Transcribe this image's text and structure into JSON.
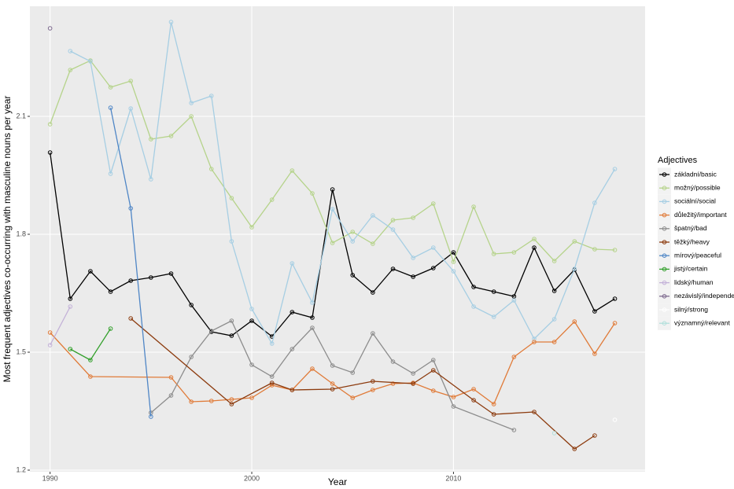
{
  "chart_data": {
    "type": "line",
    "xlabel": "Year",
    "ylabel": "Most frequent adjectives co-occurring with masculine nouns per year",
    "legend_title": "Adjectives",
    "legend": "right",
    "grid": true,
    "xlim": [
      1989,
      2019.5
    ],
    "xticks": [
      1990,
      2000,
      2010
    ],
    "ylim": [
      1.196,
      2.38
    ],
    "yticks": [
      1.2,
      1.5,
      1.8,
      2.1
    ],
    "series": [
      {
        "name": "základní/basic",
        "color": "#000000",
        "x": [
          1990,
          1991,
          1992,
          1993,
          1994,
          1995,
          1996,
          1997,
          1998,
          1999,
          2000,
          2001,
          2002,
          2003,
          2004,
          2005,
          2006,
          2007,
          2008,
          2009,
          2010,
          2011,
          2012,
          2013,
          2014,
          2015,
          2016,
          2017,
          2018
        ],
        "values": [
          2.008,
          1.636,
          1.706,
          1.654,
          1.682,
          1.69,
          1.7,
          1.62,
          1.552,
          1.542,
          1.58,
          1.54,
          1.602,
          1.588,
          1.914,
          1.696,
          1.652,
          1.712,
          1.692,
          1.714,
          1.754,
          1.666,
          1.654,
          1.642,
          1.766,
          1.656,
          1.71,
          1.604,
          1.636
        ]
      },
      {
        "name": "možný/possible",
        "color": "#b5d38a",
        "x": [
          1990,
          1991,
          1992,
          1993,
          1994,
          1995,
          1996,
          1997,
          1998,
          1999,
          2000,
          2001,
          2002,
          2003,
          2004,
          2005,
          2006,
          2007,
          2008,
          2009,
          2010,
          2011,
          2012,
          2013,
          2014,
          2015,
          2016,
          2017,
          2018
        ],
        "values": [
          2.08,
          2.218,
          2.242,
          2.174,
          2.19,
          2.042,
          2.05,
          2.1,
          1.966,
          1.892,
          1.818,
          1.888,
          1.962,
          1.904,
          1.778,
          1.806,
          1.776,
          1.836,
          1.842,
          1.878,
          1.73,
          1.87,
          1.75,
          1.754,
          1.788,
          1.732,
          1.782,
          1.762,
          1.76
        ]
      },
      {
        "name": "sociální/social",
        "color": "#a6cee3",
        "x": [
          1991,
          1992,
          1993,
          1994,
          1995,
          1996,
          1997,
          1998,
          1999,
          2000,
          2001,
          2002,
          2003,
          2004,
          2005,
          2006,
          2007,
          2008,
          2009,
          2010,
          2011,
          2012,
          2013,
          2014,
          2015,
          2016,
          2017,
          2018
        ],
        "values": [
          2.266,
          2.24,
          1.954,
          2.12,
          1.94,
          2.34,
          2.134,
          2.152,
          1.782,
          1.61,
          1.522,
          1.726,
          1.626,
          1.864,
          1.782,
          1.848,
          1.812,
          1.74,
          1.766,
          1.706,
          1.616,
          1.59,
          1.632,
          1.534,
          1.584,
          1.712,
          1.88,
          1.966
        ]
      },
      {
        "name": "důležitý/important",
        "color": "#e07b39",
        "x": [
          1990,
          1992,
          1996,
          1997,
          1998,
          1999,
          2000,
          2001,
          2002,
          2003,
          2004,
          2005,
          2006,
          2007,
          2008,
          2009,
          2010,
          2011,
          2012,
          2013,
          2014,
          2015,
          2016,
          2017,
          2018
        ],
        "values": [
          1.55,
          1.438,
          1.436,
          1.374,
          1.376,
          1.38,
          1.384,
          1.416,
          1.404,
          1.458,
          1.42,
          1.384,
          1.404,
          1.42,
          1.422,
          1.402,
          1.386,
          1.406,
          1.368,
          1.488,
          1.526,
          1.526,
          1.578,
          1.496,
          1.574
        ]
      },
      {
        "name": "špatný/bad",
        "color": "#8c8c8c",
        "x": [
          1995,
          1996,
          1997,
          1998,
          1999,
          2000,
          2001,
          2002,
          2003,
          2004,
          2005,
          2006,
          2007,
          2008,
          2009,
          2010,
          2013
        ],
        "values": [
          1.346,
          1.39,
          1.488,
          1.554,
          1.58,
          1.468,
          1.438,
          1.508,
          1.562,
          1.466,
          1.448,
          1.548,
          1.476,
          1.446,
          1.48,
          1.362,
          1.302
        ]
      },
      {
        "name": "těžký/heavy",
        "color": "#8c3b0e",
        "x": [
          1994,
          1999,
          2001,
          2002,
          2004,
          2006,
          2008,
          2009,
          2011,
          2012,
          2014,
          2016,
          2017
        ],
        "values": [
          1.586,
          1.368,
          1.422,
          1.404,
          1.406,
          1.426,
          1.42,
          1.454,
          1.378,
          1.342,
          1.348,
          1.254,
          1.288
        ]
      },
      {
        "name": "mírový/peaceful",
        "color": "#4f86c6",
        "x": [
          1993,
          1994,
          1995
        ],
        "values": [
          2.122,
          1.866,
          1.336
        ]
      },
      {
        "name": "jistý/certain",
        "color": "#33a02c",
        "x": [
          1991,
          1992,
          1993
        ],
        "values": [
          1.508,
          1.48,
          1.56
        ]
      },
      {
        "name": "lidský/human",
        "color": "#c3b1d8",
        "x": [
          1990,
          1991
        ],
        "values": [
          1.518,
          1.616
        ]
      },
      {
        "name": "nezávislý/independent",
        "color": "#7e6b8f",
        "x": [
          1990
        ],
        "values": [
          2.324
        ]
      },
      {
        "name": "silný/strong",
        "color": "#ffffff",
        "x": [
          2018
        ],
        "values": [
          1.328
        ]
      },
      {
        "name": "významný/relevant",
        "color": "#b3e0dc",
        "x": [
          2015
        ],
        "values": [
          1.294
        ]
      }
    ]
  }
}
